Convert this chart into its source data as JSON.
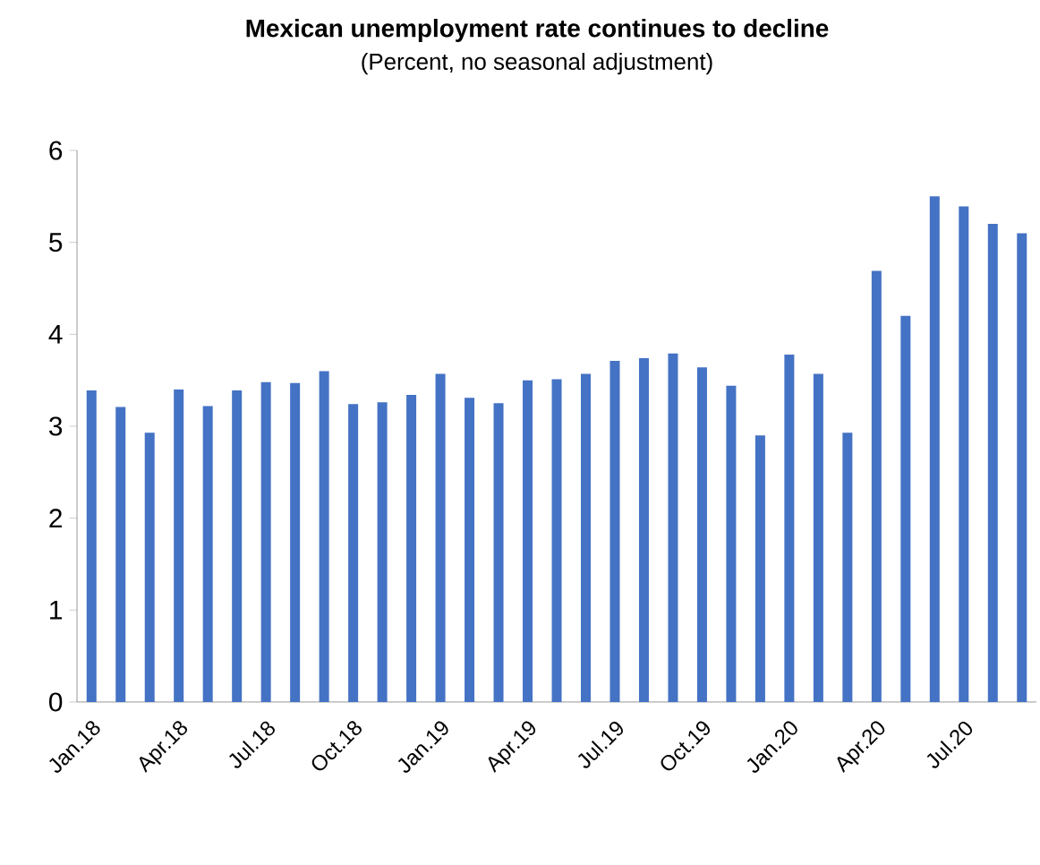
{
  "chart_data": {
    "type": "bar",
    "title": "Mexican unemployment rate continues to decline",
    "subtitle": "(Percent, no seasonal adjustment)",
    "categories": [
      "Jan.18",
      null,
      null,
      "Apr.18",
      null,
      null,
      "Jul.18",
      null,
      null,
      "Oct.18",
      null,
      null,
      "Jan.19",
      null,
      null,
      "Apr.19",
      null,
      null,
      "Jul.19",
      null,
      null,
      "Oct.19",
      null,
      null,
      "Jan.20",
      null,
      null,
      "Apr.20",
      null,
      null,
      "Jul.20",
      null,
      null
    ],
    "values": [
      3.39,
      3.21,
      2.93,
      3.4,
      3.22,
      3.39,
      3.48,
      3.47,
      3.6,
      3.24,
      3.26,
      3.34,
      3.57,
      3.31,
      3.25,
      3.5,
      3.51,
      3.57,
      3.71,
      3.74,
      3.79,
      3.64,
      3.44,
      2.9,
      3.78,
      3.57,
      2.93,
      4.69,
      4.2,
      5.5,
      5.39,
      5.2,
      5.1
    ],
    "color": "#4472c4",
    "ylim": [
      0,
      6
    ],
    "yticks": [
      0,
      1,
      2,
      3,
      4,
      5,
      6
    ],
    "grid": false
  }
}
